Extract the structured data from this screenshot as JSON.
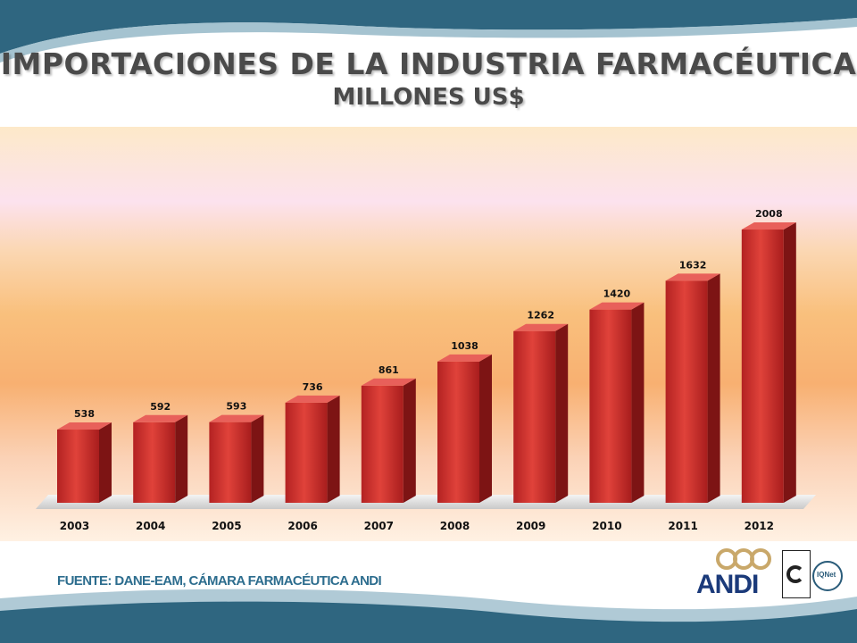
{
  "header": {
    "title": "IMPORTACIONES DE LA INDUSTRIA FARMACÉUTICA",
    "subtitle": "MILLONES US$"
  },
  "chart_data": {
    "type": "bar",
    "categories": [
      "2003",
      "2004",
      "2005",
      "2006",
      "2007",
      "2008",
      "2009",
      "2010",
      "2011",
      "2012"
    ],
    "values": [
      538,
      592,
      593,
      736,
      861,
      1038,
      1262,
      1420,
      1632,
      2008
    ],
    "title": "IMPORTACIONES DE LA INDUSTRIA FARMACÉUTICA",
    "subtitle": "MILLONES US$",
    "xlabel": "",
    "ylabel": "",
    "ylim": [
      0,
      2100
    ],
    "grid": false,
    "legend": "none",
    "bar_color": "#d0312d"
  },
  "footer": {
    "source": "FUENTE: DANE-EAM, CÁMARA FARMACÉUTICA ANDI",
    "logo_text": "ANDI",
    "cert_label": "IQNet"
  },
  "colors": {
    "wave_dark": "#2f6680",
    "wave_light": "#8fb4c4",
    "title_text": "#4a4a4a",
    "source_text": "#2d6d8e",
    "logo_blue": "#1b3a7a",
    "logo_gold": "#c9a86a"
  }
}
